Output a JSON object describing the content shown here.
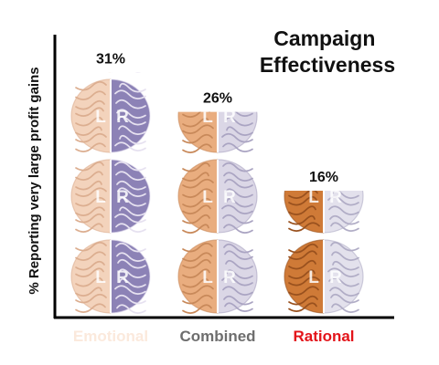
{
  "chart_data": {
    "type": "bar",
    "title": "Campaign Effectiveness",
    "title_lines": [
      "Campaign",
      "Effectiveness"
    ],
    "ylabel": "% Reporting very large profit gains",
    "xlabel": "",
    "categories": [
      "Emotional",
      "Combined",
      "Rational"
    ],
    "values": [
      31,
      26,
      16
    ],
    "value_labels": [
      "31%",
      "26%",
      "16%"
    ],
    "ylim": [
      0,
      35
    ],
    "grid": false,
    "legend": "none",
    "brain_letters": [
      "L",
      "R"
    ],
    "category_colors": [
      "#fbe9dc",
      "#6e6e6e",
      "#e3141a"
    ],
    "bar_styles": [
      {
        "left": "#f3d3bc",
        "left_stroke": "#dcae90",
        "right": "#8c82b6",
        "right_stroke": "#e6e1f0"
      },
      {
        "left": "#e9ad7f",
        "left_stroke": "#c8895a",
        "right": "#dbd7e6",
        "right_stroke": "#aaa4c2"
      },
      {
        "left": "#cf7a37",
        "left_stroke": "#99511e",
        "right": "#e3e1ec",
        "right_stroke": "#b1adc6"
      }
    ]
  }
}
